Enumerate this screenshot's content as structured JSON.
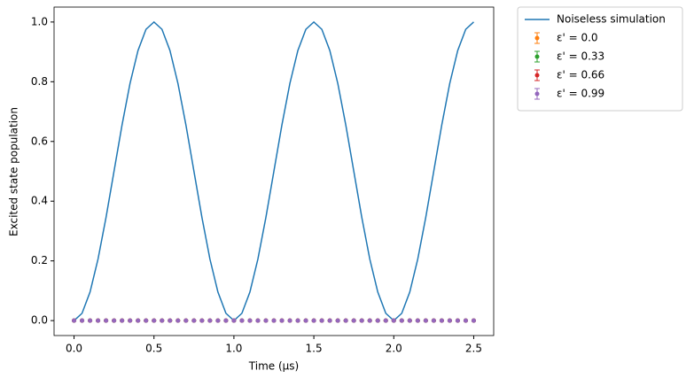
{
  "chart_data": {
    "type": "line",
    "xlabel": "Time (μs)",
    "ylabel": "Excited state population",
    "x": [
      0,
      0.05,
      0.1,
      0.15,
      0.2,
      0.25,
      0.3,
      0.35,
      0.4,
      0.45,
      0.5,
      0.55,
      0.6,
      0.65,
      0.7,
      0.75,
      0.8,
      0.85,
      0.9,
      0.95,
      1,
      1.05,
      1.1,
      1.15,
      1.2,
      1.25,
      1.3,
      1.35,
      1.4,
      1.45,
      1.5,
      1.55,
      1.6,
      1.65,
      1.7,
      1.75,
      1.8,
      1.85,
      1.9,
      1.95,
      2,
      2.05,
      2.1,
      2.15,
      2.2,
      2.25,
      2.3,
      2.35,
      2.4,
      2.45,
      2.5
    ],
    "series": [
      {
        "name": "Noiseless simulation",
        "color": "#1f77b4",
        "mode": "line",
        "values": [
          0,
          0.0245,
          0.0955,
          0.2061,
          0.3455,
          0.5,
          0.6545,
          0.7939,
          0.9045,
          0.9755,
          1,
          0.9755,
          0.9045,
          0.7939,
          0.6545,
          0.5,
          0.3455,
          0.2061,
          0.0955,
          0.0245,
          0,
          0.0245,
          0.0955,
          0.2061,
          0.3455,
          0.5,
          0.6545,
          0.7939,
          0.9045,
          0.9755,
          1,
          0.9755,
          0.9045,
          0.7939,
          0.6545,
          0.5,
          0.3455,
          0.2061,
          0.0955,
          0.0245,
          0,
          0.0245,
          0.0955,
          0.2061,
          0.3455,
          0.5,
          0.6545,
          0.7939,
          0.9045,
          0.9755,
          1
        ]
      },
      {
        "name": "ε' = 0.0",
        "color": "#ff7f0e",
        "mode": "errorbar",
        "values": [
          0,
          0,
          0,
          0,
          0,
          0,
          0,
          0,
          0,
          0,
          0,
          0,
          0,
          0,
          0,
          0,
          0,
          0,
          0,
          0,
          0,
          0,
          0,
          0,
          0,
          0,
          0,
          0,
          0,
          0,
          0,
          0,
          0,
          0,
          0,
          0,
          0,
          0,
          0,
          0,
          0,
          0,
          0,
          0,
          0,
          0,
          0,
          0,
          0,
          0,
          0
        ]
      },
      {
        "name": "ε' = 0.33",
        "color": "#2ca02c",
        "mode": "errorbar",
        "values": [
          0,
          0,
          0,
          0,
          0,
          0,
          0,
          0,
          0,
          0,
          0,
          0,
          0,
          0,
          0,
          0,
          0,
          0,
          0,
          0,
          0,
          0,
          0,
          0,
          0,
          0,
          0,
          0,
          0,
          0,
          0,
          0,
          0,
          0,
          0,
          0,
          0,
          0,
          0,
          0,
          0,
          0,
          0,
          0,
          0,
          0,
          0,
          0,
          0,
          0,
          0
        ]
      },
      {
        "name": "ε' = 0.66",
        "color": "#d62728",
        "mode": "errorbar",
        "values": [
          0,
          0,
          0,
          0,
          0,
          0,
          0,
          0,
          0,
          0,
          0,
          0,
          0,
          0,
          0,
          0,
          0,
          0,
          0,
          0,
          0,
          0,
          0,
          0,
          0,
          0,
          0,
          0,
          0,
          0,
          0,
          0,
          0,
          0,
          0,
          0,
          0,
          0,
          0,
          0,
          0,
          0,
          0,
          0,
          0,
          0,
          0,
          0,
          0,
          0,
          0
        ]
      },
      {
        "name": "ε' = 0.99",
        "color": "#9467bd",
        "mode": "errorbar",
        "values": [
          0,
          0,
          0,
          0,
          0,
          0,
          0,
          0,
          0,
          0,
          0,
          0,
          0,
          0,
          0,
          0,
          0,
          0,
          0,
          0,
          0,
          0,
          0,
          0,
          0,
          0,
          0,
          0,
          0,
          0,
          0,
          0,
          0,
          0,
          0,
          0,
          0,
          0,
          0,
          0,
          0,
          0,
          0,
          0,
          0,
          0,
          0,
          0,
          0,
          0,
          0
        ]
      }
    ],
    "xlim": [
      -0.125,
      2.625
    ],
    "ylim": [
      -0.05,
      1.05
    ],
    "xticks": [
      {
        "value": 0,
        "label": "0.0"
      },
      0.5,
      {
        "value": 1,
        "label": "1.0"
      },
      1.5,
      {
        "value": 2,
        "label": "2.0"
      },
      2.5
    ],
    "yticks": [
      {
        "value": 0,
        "label": "0.0"
      },
      0.2,
      0.4,
      0.6,
      0.8,
      {
        "value": 1,
        "label": "1.0"
      }
    ],
    "grid": false,
    "legend": "outside"
  }
}
